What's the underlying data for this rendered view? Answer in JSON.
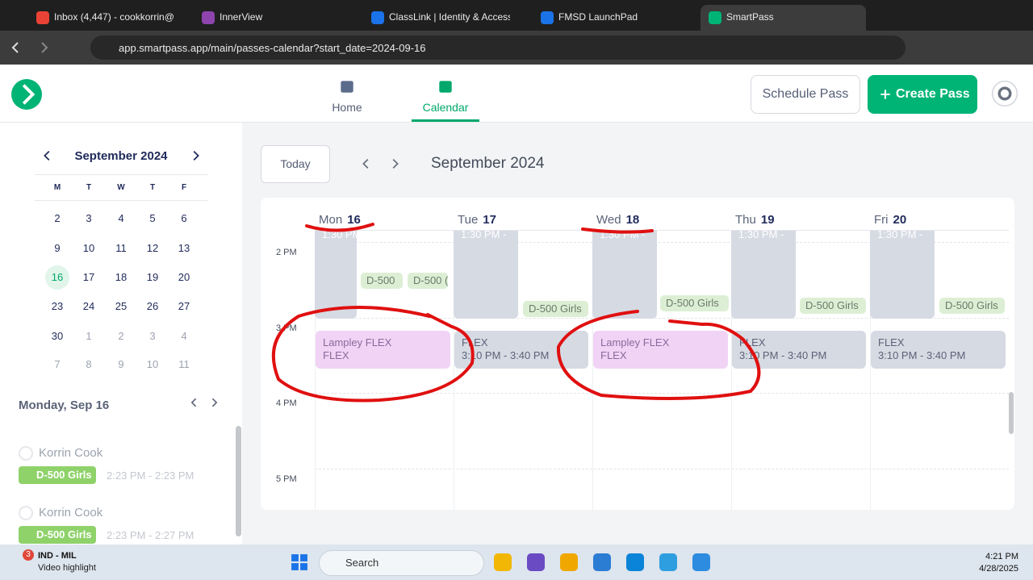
{
  "browser": {
    "tabs": [
      "Inbox (4,447) - cookkorrin@...",
      "InnerView",
      "ClassLink | Identity & Access",
      "FMSD LaunchPad",
      "SmartPass"
    ],
    "url": "app.smartpass.app/main/passes-calendar?start_date=2024-09-16"
  },
  "header": {
    "nav": [
      "Home",
      "Calendar"
    ],
    "schedule_button": "Schedule Pass",
    "create_button": "Create Pass"
  },
  "mini_calendar": {
    "title": "September 2024",
    "weekdays": [
      "M",
      "T",
      "W",
      "T",
      "F"
    ],
    "weeks": [
      [
        2,
        3,
        4,
        5,
        6
      ],
      [
        9,
        10,
        11,
        12,
        13
      ],
      [
        16,
        17,
        18,
        19,
        20
      ],
      [
        23,
        24,
        25,
        26,
        27
      ],
      [
        30,
        1,
        2,
        3,
        4
      ],
      [
        7,
        8,
        9,
        10,
        11
      ]
    ],
    "selected": 16
  },
  "agenda": {
    "title": "Monday, Sep 16",
    "entries": [
      {
        "name": "Korrin Cook",
        "tag": "D-500 Girls",
        "time": "2:23 PM - 2:23 PM"
      },
      {
        "name": "Korrin Cook",
        "tag": "D-500 Girls",
        "time": "2:23 PM - 2:27 PM"
      }
    ]
  },
  "calendar": {
    "today_button": "Today",
    "title": "September 2024",
    "hours": [
      "2 PM",
      "3 PM",
      "4 PM",
      "5 PM"
    ],
    "days": [
      {
        "name": "Mon",
        "date": 16,
        "pass_time": "1:30 PM -",
        "chips": [
          "D-500",
          "D-500 ("
        ],
        "flex": {
          "title": "Lampley FLEX",
          "detail": "FLEX",
          "color": "#f1d3f6"
        }
      },
      {
        "name": "Tue",
        "date": 17,
        "pass_time": "1:30 PM -",
        "chips": [
          "D-500 Girls"
        ],
        "flex": {
          "title": "FLEX",
          "detail": "3:10 PM - 3:40 PM",
          "color": "#d6dae3"
        }
      },
      {
        "name": "Wed",
        "date": 18,
        "pass_time": "1:30 PM -",
        "chips": [
          "D-500 Girls"
        ],
        "flex": {
          "title": "Lampley FLEX",
          "detail": "FLEX",
          "color": "#f1d3f6"
        }
      },
      {
        "name": "Thu",
        "date": 19,
        "pass_time": "1:30 PM -",
        "chips": [
          "D-500 Girls"
        ],
        "flex": {
          "title": "FLEX",
          "detail": "3:10 PM - 3:40 PM",
          "color": "#d6dae3"
        }
      },
      {
        "name": "Fri",
        "date": 20,
        "pass_time": "1:30 PM -",
        "chips": [
          "D-500 Girls"
        ],
        "flex": {
          "title": "FLEX",
          "detail": "3:10 PM - 3:40 PM",
          "color": "#d6dae3"
        }
      }
    ]
  },
  "taskbar": {
    "badge": 3,
    "news_title": "IND - MIL",
    "news_sub": "Video highlight",
    "search": "Search",
    "time": "4:21 PM",
    "date": "4/28/2025"
  }
}
